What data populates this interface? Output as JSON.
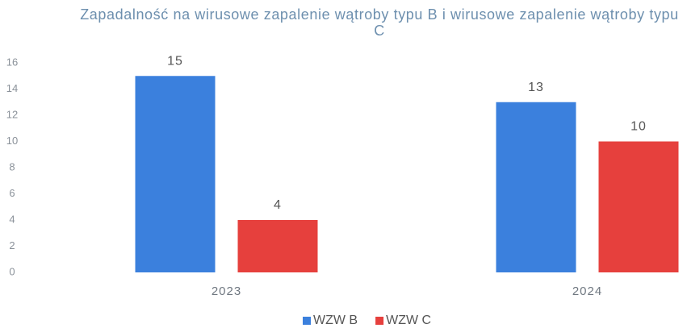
{
  "chart_data": {
    "type": "bar",
    "title": "Zapadalność na wirusowe zapalenie wątroby typu B i wirusowe zapalenie wątroby typu C",
    "categories": [
      "2023",
      "2024"
    ],
    "series": [
      {
        "name": "WZW B",
        "color": "#3b80dd",
        "values": [
          15,
          13
        ]
      },
      {
        "name": "WZW C",
        "color": "#e6403d",
        "values": [
          4,
          10
        ]
      }
    ],
    "ylim": [
      0,
      16
    ],
    "yticks": [
      0,
      2,
      4,
      6,
      8,
      10,
      12,
      14,
      16
    ],
    "grid": false,
    "legend": "bottom"
  }
}
